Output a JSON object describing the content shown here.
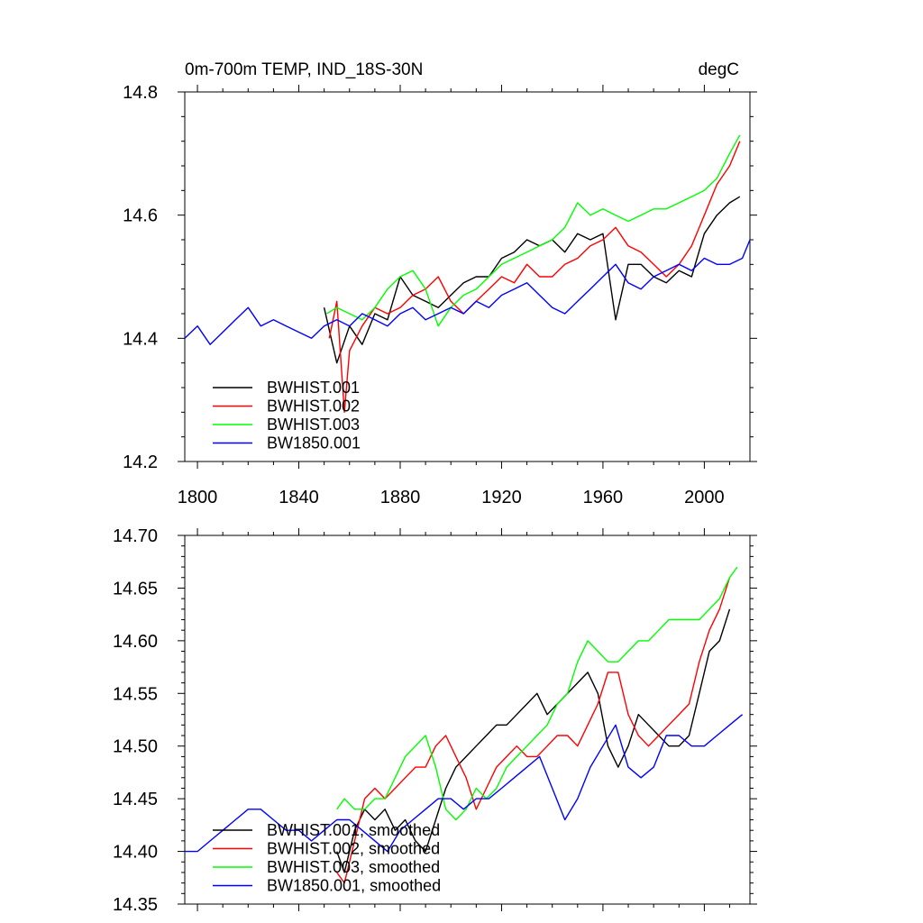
{
  "chart_data": [
    {
      "type": "line",
      "title": "0m-700m TEMP, IND_18S-30N",
      "units": "degC",
      "xlabel": "",
      "ylabel": "",
      "xlim": [
        1795,
        2018
      ],
      "ylim": [
        14.2,
        14.8
      ],
      "x_ticks": [
        "1800",
        "1840",
        "1880",
        "1920",
        "1960",
        "2000"
      ],
      "y_ticks": [
        "14.2",
        "14.4",
        "14.6",
        "14.8"
      ],
      "legend_position": "bottom-left",
      "series": [
        {
          "name": "BWHIST.001",
          "color": "#000000",
          "x": [
            1850,
            1855,
            1860,
            1865,
            1870,
            1875,
            1880,
            1885,
            1890,
            1895,
            1900,
            1905,
            1910,
            1915,
            1920,
            1925,
            1930,
            1935,
            1940,
            1945,
            1950,
            1955,
            1960,
            1965,
            1970,
            1975,
            1980,
            1985,
            1990,
            1995,
            2000,
            2005,
            2010,
            2014
          ],
          "y": [
            14.45,
            14.36,
            14.42,
            14.39,
            14.44,
            14.43,
            14.5,
            14.47,
            14.46,
            14.45,
            14.47,
            14.49,
            14.5,
            14.5,
            14.53,
            14.54,
            14.56,
            14.55,
            14.56,
            14.54,
            14.57,
            14.56,
            14.57,
            14.43,
            14.52,
            14.52,
            14.5,
            14.49,
            14.51,
            14.5,
            14.57,
            14.6,
            14.62,
            14.63
          ]
        },
        {
          "name": "BWHIST.002",
          "color": "#ff0000",
          "x": [
            1852,
            1855,
            1858,
            1860,
            1865,
            1870,
            1875,
            1880,
            1885,
            1890,
            1895,
            1900,
            1905,
            1910,
            1915,
            1920,
            1925,
            1930,
            1935,
            1940,
            1945,
            1950,
            1955,
            1960,
            1965,
            1970,
            1975,
            1980,
            1985,
            1990,
            1995,
            2000,
            2005,
            2010,
            2014
          ],
          "y": [
            14.4,
            14.46,
            14.28,
            14.38,
            14.42,
            14.45,
            14.44,
            14.45,
            14.47,
            14.48,
            14.5,
            14.46,
            14.44,
            14.46,
            14.48,
            14.5,
            14.49,
            14.52,
            14.5,
            14.5,
            14.52,
            14.53,
            14.55,
            14.56,
            14.58,
            14.55,
            14.54,
            14.52,
            14.5,
            14.52,
            14.55,
            14.6,
            14.65,
            14.68,
            14.72
          ]
        },
        {
          "name": "BWHIST.003",
          "color": "#00ff00",
          "x": [
            1851,
            1855,
            1860,
            1865,
            1870,
            1875,
            1880,
            1885,
            1890,
            1895,
            1900,
            1905,
            1910,
            1915,
            1920,
            1925,
            1930,
            1935,
            1940,
            1945,
            1950,
            1955,
            1960,
            1965,
            1970,
            1975,
            1980,
            1985,
            1990,
            1995,
            2000,
            2005,
            2010,
            2014
          ],
          "y": [
            14.44,
            14.45,
            14.44,
            14.43,
            14.45,
            14.48,
            14.5,
            14.51,
            14.48,
            14.42,
            14.45,
            14.47,
            14.48,
            14.5,
            14.52,
            14.53,
            14.54,
            14.55,
            14.56,
            14.58,
            14.62,
            14.6,
            14.61,
            14.6,
            14.59,
            14.6,
            14.61,
            14.61,
            14.62,
            14.63,
            14.64,
            14.66,
            14.7,
            14.73
          ]
        },
        {
          "name": "BW1850.001",
          "color": "#0000ff",
          "x": [
            1795,
            1800,
            1805,
            1810,
            1815,
            1820,
            1825,
            1830,
            1835,
            1840,
            1845,
            1850,
            1855,
            1860,
            1865,
            1870,
            1875,
            1880,
            1885,
            1890,
            1895,
            1900,
            1905,
            1910,
            1915,
            1920,
            1925,
            1930,
            1935,
            1940,
            1945,
            1950,
            1955,
            1960,
            1965,
            1970,
            1975,
            1980,
            1985,
            1990,
            1995,
            2000,
            2005,
            2010,
            2015,
            2018
          ],
          "y": [
            14.4,
            14.42,
            14.39,
            14.41,
            14.43,
            14.45,
            14.42,
            14.43,
            14.42,
            14.41,
            14.4,
            14.42,
            14.43,
            14.42,
            14.44,
            14.43,
            14.42,
            14.44,
            14.45,
            14.43,
            14.44,
            14.45,
            14.44,
            14.46,
            14.45,
            14.47,
            14.48,
            14.49,
            14.47,
            14.45,
            14.44,
            14.46,
            14.48,
            14.5,
            14.52,
            14.49,
            14.48,
            14.5,
            14.51,
            14.52,
            14.51,
            14.53,
            14.52,
            14.52,
            14.53,
            14.56
          ]
        }
      ]
    },
    {
      "type": "line",
      "title": "",
      "xlabel": "",
      "ylabel": "",
      "xlim": [
        1795,
        2018
      ],
      "ylim": [
        14.35,
        14.7
      ],
      "y_ticks": [
        "14.35",
        "14.40",
        "14.45",
        "14.50",
        "14.55",
        "14.60",
        "14.65",
        "14.70"
      ],
      "legend_position": "bottom-left",
      "series": [
        {
          "name": "BWHIST.001, smoothed",
          "color": "#000000",
          "x": [
            1855,
            1858,
            1862,
            1866,
            1870,
            1874,
            1878,
            1882,
            1886,
            1890,
            1894,
            1898,
            1902,
            1906,
            1910,
            1914,
            1918,
            1922,
            1926,
            1930,
            1934,
            1938,
            1942,
            1946,
            1950,
            1954,
            1958,
            1962,
            1966,
            1970,
            1974,
            1978,
            1982,
            1986,
            1990,
            1994,
            1998,
            2002,
            2006,
            2010
          ],
          "y": [
            14.4,
            14.38,
            14.42,
            14.44,
            14.43,
            14.44,
            14.42,
            14.43,
            14.41,
            14.4,
            14.43,
            14.46,
            14.48,
            14.49,
            14.5,
            14.51,
            14.52,
            14.52,
            14.53,
            14.54,
            14.55,
            14.53,
            14.54,
            14.55,
            14.56,
            14.57,
            14.55,
            14.5,
            14.48,
            14.5,
            14.53,
            14.52,
            14.51,
            14.5,
            14.5,
            14.51,
            14.55,
            14.59,
            14.6,
            14.63
          ]
        },
        {
          "name": "BWHIST.002, smoothed",
          "color": "#ff0000",
          "x": [
            1855,
            1858,
            1862,
            1866,
            1870,
            1874,
            1878,
            1882,
            1886,
            1890,
            1894,
            1898,
            1902,
            1906,
            1910,
            1914,
            1918,
            1922,
            1926,
            1930,
            1934,
            1938,
            1942,
            1946,
            1950,
            1954,
            1958,
            1962,
            1966,
            1970,
            1974,
            1978,
            1982,
            1986,
            1990,
            1994,
            1998,
            2002,
            2006,
            2010
          ],
          "y": [
            14.38,
            14.37,
            14.41,
            14.45,
            14.46,
            14.45,
            14.46,
            14.47,
            14.48,
            14.48,
            14.5,
            14.51,
            14.49,
            14.47,
            14.44,
            14.46,
            14.48,
            14.49,
            14.5,
            14.49,
            14.49,
            14.5,
            14.51,
            14.51,
            14.5,
            14.52,
            14.54,
            14.57,
            14.57,
            14.53,
            14.51,
            14.5,
            14.51,
            14.52,
            14.53,
            14.54,
            14.58,
            14.61,
            14.63,
            14.66
          ]
        },
        {
          "name": "BWHIST.003, smoothed",
          "color": "#00ff00",
          "x": [
            1855,
            1858,
            1862,
            1866,
            1870,
            1874,
            1878,
            1882,
            1886,
            1890,
            1894,
            1898,
            1902,
            1906,
            1910,
            1914,
            1918,
            1922,
            1926,
            1930,
            1934,
            1938,
            1942,
            1946,
            1950,
            1954,
            1958,
            1962,
            1966,
            1970,
            1974,
            1978,
            1982,
            1986,
            1990,
            1994,
            1998,
            2002,
            2006,
            2010,
            2013
          ],
          "y": [
            14.44,
            14.45,
            14.44,
            14.44,
            14.45,
            14.45,
            14.47,
            14.49,
            14.5,
            14.51,
            14.48,
            14.44,
            14.43,
            14.44,
            14.46,
            14.45,
            14.46,
            14.48,
            14.49,
            14.5,
            14.51,
            14.52,
            14.54,
            14.55,
            14.58,
            14.6,
            14.59,
            14.58,
            14.58,
            14.59,
            14.6,
            14.6,
            14.61,
            14.62,
            14.62,
            14.62,
            14.62,
            14.63,
            14.64,
            14.66,
            14.67
          ]
        },
        {
          "name": "BW1850.001, smoothed",
          "color": "#0000ff",
          "x": [
            1795,
            1800,
            1805,
            1810,
            1815,
            1820,
            1825,
            1830,
            1835,
            1840,
            1845,
            1850,
            1855,
            1860,
            1865,
            1870,
            1875,
            1880,
            1885,
            1890,
            1895,
            1900,
            1905,
            1910,
            1915,
            1920,
            1925,
            1930,
            1935,
            1940,
            1945,
            1950,
            1955,
            1960,
            1965,
            1970,
            1975,
            1980,
            1985,
            1990,
            1995,
            2000,
            2005,
            2010,
            2015
          ],
          "y": [
            14.4,
            14.4,
            14.41,
            14.42,
            14.43,
            14.44,
            14.44,
            14.43,
            14.42,
            14.42,
            14.41,
            14.42,
            14.43,
            14.43,
            14.42,
            14.41,
            14.4,
            14.42,
            14.43,
            14.44,
            14.45,
            14.45,
            14.44,
            14.45,
            14.45,
            14.46,
            14.47,
            14.48,
            14.49,
            14.46,
            14.43,
            14.45,
            14.48,
            14.5,
            14.52,
            14.48,
            14.47,
            14.48,
            14.51,
            14.51,
            14.5,
            14.5,
            14.51,
            14.52,
            14.53
          ]
        }
      ]
    }
  ]
}
